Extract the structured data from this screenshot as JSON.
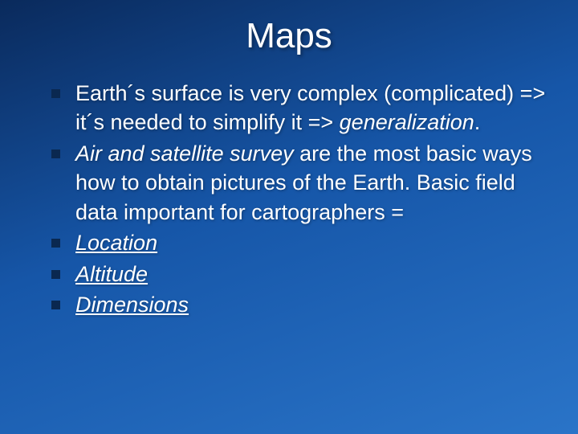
{
  "slide": {
    "title": "Maps",
    "title_fontsize": 44,
    "body_fontsize": 27,
    "background_gradient": [
      "#0a2a5c",
      "#1656a8",
      "#2a74c8"
    ],
    "text_color": "#ffffff",
    "bullet_color": "#0a2850",
    "bullets": [
      {
        "pre": "Earth´s surface is very complex (complicated) => it´s needed to simplify it => ",
        "em": "generalization",
        "post": "."
      },
      {
        "em_lead": "Air and satellite survey",
        "rest": " are the most basic ways how to obtain pictures of the Earth. Basic field data important for cartographers ="
      },
      {
        "u": "Location"
      },
      {
        "u": "Altitude"
      },
      {
        "u": "Dimensions"
      }
    ]
  }
}
